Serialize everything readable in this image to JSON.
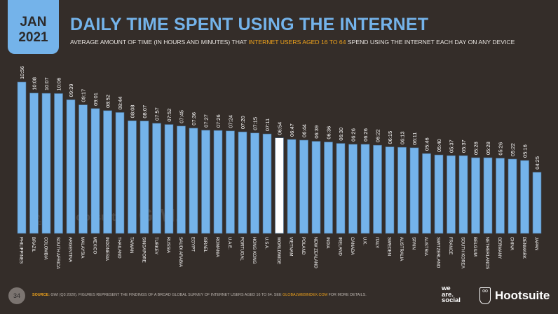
{
  "header": {
    "month": "JAN",
    "year": "2021",
    "title": "DAILY TIME SPENT USING THE INTERNET",
    "subtitle_pre": "AVERAGE AMOUNT OF TIME (IN HOURS AND MINUTES) THAT ",
    "subtitle_highlight": "INTERNET USERS AGED 16 TO 64",
    "subtitle_post": " SPEND USING THE INTERNET EACH DAY ON ANY DEVICE"
  },
  "chart_data": {
    "type": "bar",
    "title": "DAILY TIME SPENT USING THE INTERNET",
    "xlabel": "",
    "ylabel": "",
    "value_unit": "hh:mm",
    "ylim_minutes": [
      0,
      660
    ],
    "grid": false,
    "categories": [
      "PHILIPPINES",
      "BRAZIL",
      "COLOMBIA",
      "SOUTH AFRICA",
      "ARGENTINA",
      "MALAYSIA",
      "MEXICO",
      "INDONESIA",
      "THAILAND",
      "TAIWAN",
      "SINGAPORE",
      "TURKEY",
      "RUSSIA",
      "SAUDI ARABIA",
      "EGYPT",
      "ISRAEL",
      "ROMANIA",
      "U.A.E.",
      "PORTUGAL",
      "HONG KONG",
      "U.S.A.",
      "WORLDWIDE",
      "VIETNAM",
      "POLAND",
      "NEW ZEALAND",
      "INDIA",
      "IRELAND",
      "CANADA",
      "U.K.",
      "ITALY",
      "SWEDEN",
      "AUSTRALIA",
      "SPAIN",
      "AUSTRIA",
      "SWITZERLAND",
      "FRANCE",
      "SOUTH KOREA",
      "BELGIUM",
      "NETHERLANDS",
      "GERMANY",
      "CHINA",
      "DENMARK",
      "JAPAN"
    ],
    "values": [
      "10:56",
      "10:08",
      "10:07",
      "10:06",
      "09:39",
      "09:17",
      "09:01",
      "08:52",
      "08:44",
      "08:08",
      "08:07",
      "07:57",
      "07:52",
      "07:45",
      "07:36",
      "07:27",
      "07:26",
      "07:24",
      "07:20",
      "07:15",
      "07:11",
      "06:54",
      "06:47",
      "06:44",
      "06:39",
      "06:36",
      "06:30",
      "06:26",
      "06:26",
      "06:22",
      "06:15",
      "06:13",
      "06:11",
      "05:46",
      "05:40",
      "05:37",
      "05:37",
      "05:28",
      "05:28",
      "05:26",
      "05:22",
      "05:16",
      "04:25"
    ],
    "highlight_category": "WORLDWIDE",
    "colors": {
      "bar": "#74b3ea",
      "highlight": "#ffffff",
      "background": "#342d29"
    }
  },
  "footer": {
    "page_number": "34",
    "source_label": "SOURCE:",
    "source_text": " GWI (Q3 2020). FIGURES REPRESENT THE FINDINGS OF A BROAD GLOBAL SURVEY OF INTERNET USERS AGED 16 TO 64. SEE ",
    "source_link": "GLOBALWEBINDEX.COM",
    "source_post": " FOR MORE DETAILS.",
    "logo_we_are_social": "we are social",
    "logo_hootsuite": "Hootsuite",
    "watermark_gwi": "GWI."
  }
}
